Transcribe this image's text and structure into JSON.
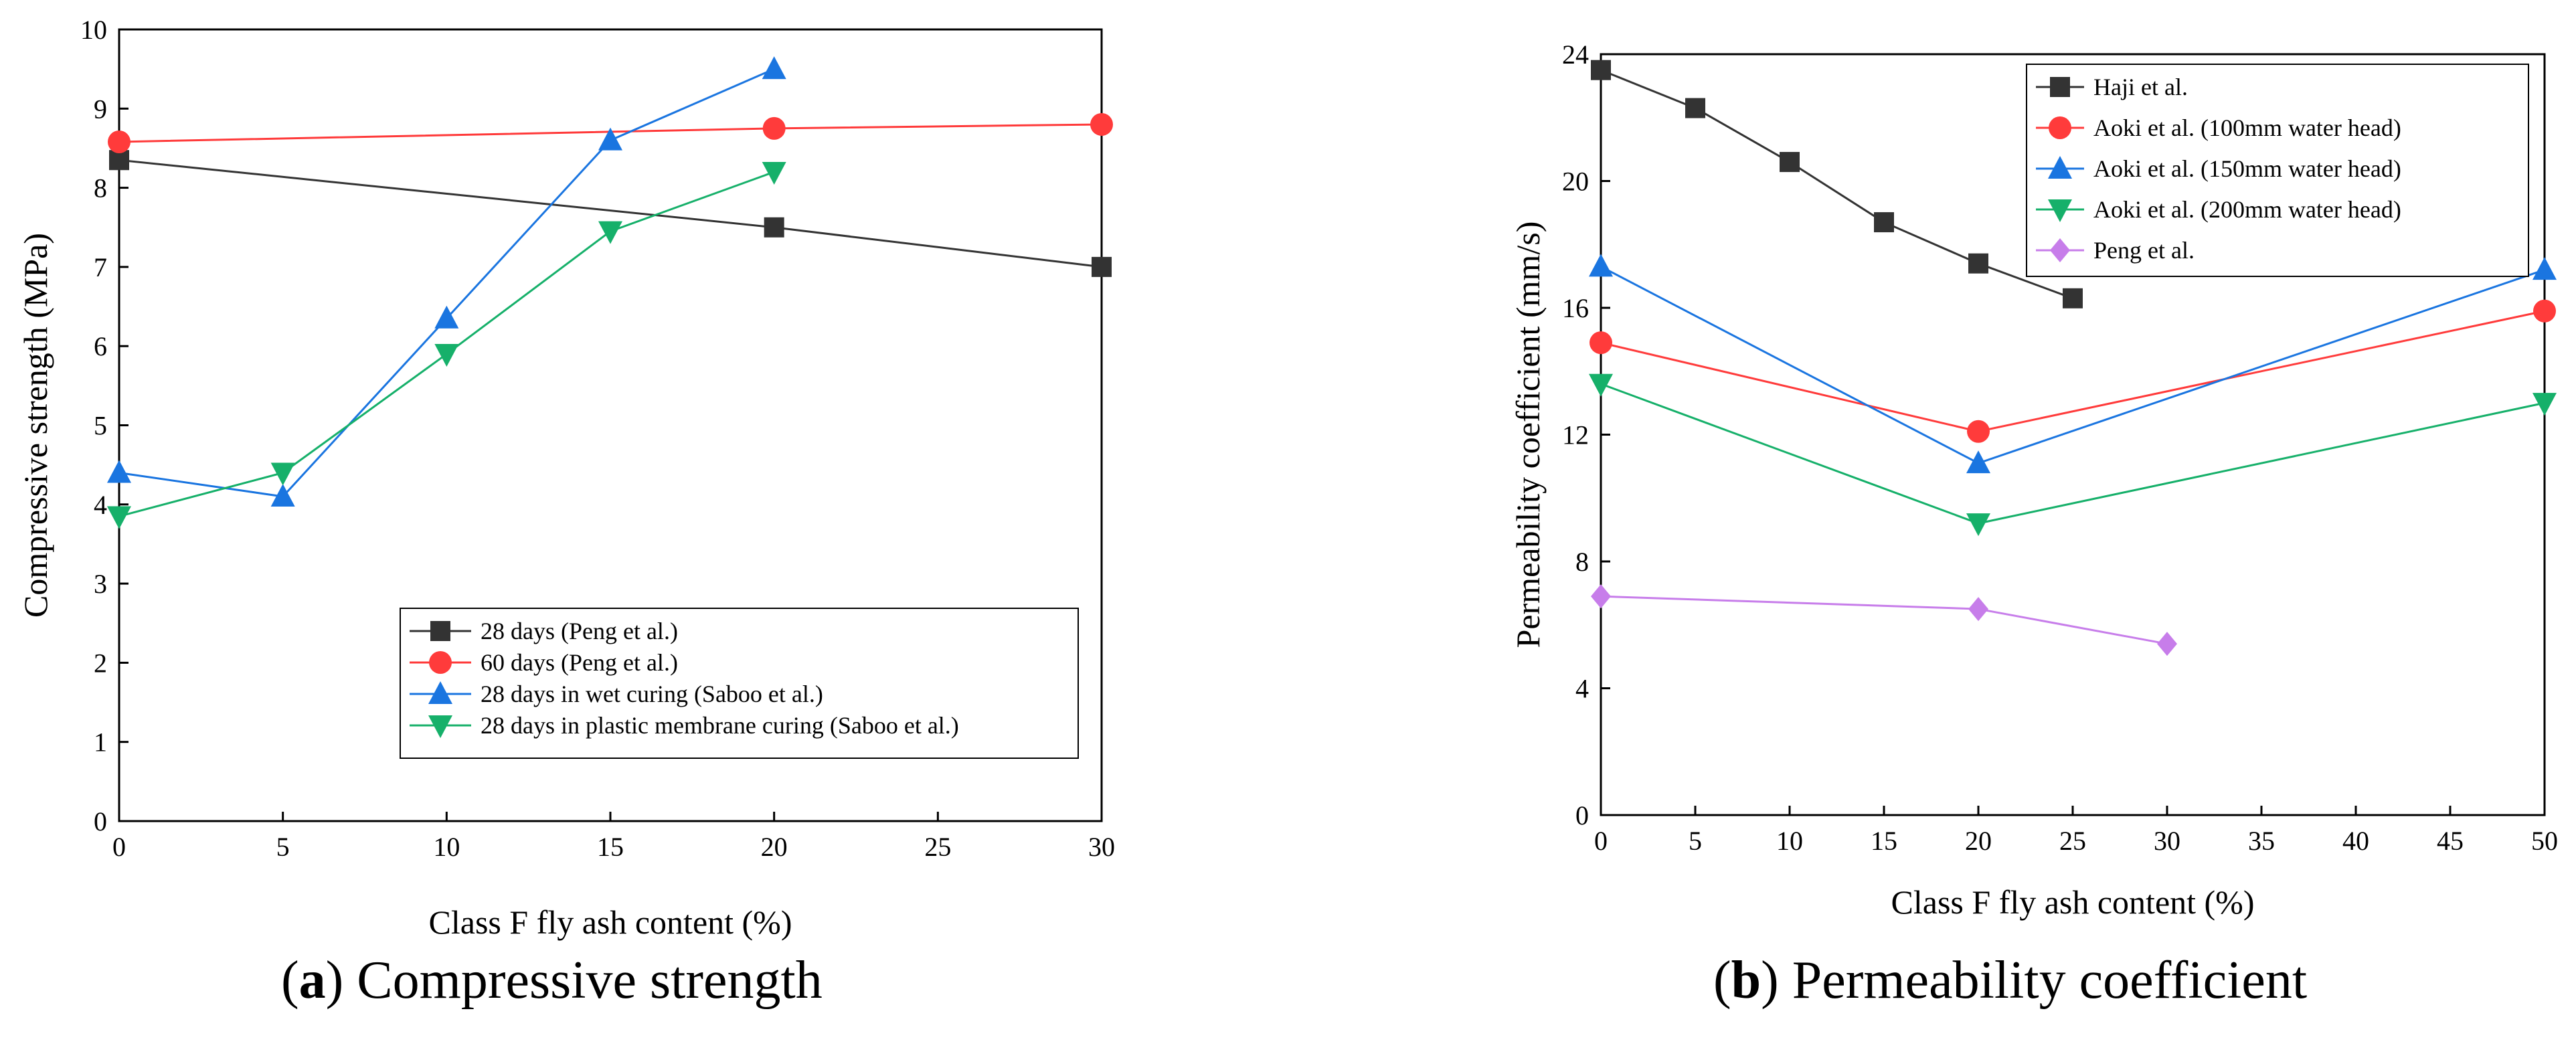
{
  "chart_data": [
    {
      "type": "line",
      "xlabel": "Class F fly ash content (%)",
      "ylabel": "Compressive strength (MPa)",
      "xlim": [
        0,
        30
      ],
      "ylim": [
        0,
        10
      ],
      "xticks": [
        0,
        5,
        10,
        15,
        20,
        25,
        30
      ],
      "yticks": [
        0,
        1,
        2,
        3,
        4,
        5,
        6,
        7,
        8,
        9,
        10
      ],
      "legend_position": "bottom-right",
      "series": [
        {
          "name": "28 days (Peng et al.)",
          "color": "#333333",
          "marker": "square",
          "x": [
            0,
            20,
            30
          ],
          "y": [
            8.35,
            7.5,
            7.0
          ]
        },
        {
          "name": "60 days (Peng et al.)",
          "color": "#ff3b3b",
          "marker": "circle",
          "x": [
            0,
            20,
            30
          ],
          "y": [
            8.58,
            8.75,
            8.8
          ]
        },
        {
          "name": "28 days in wet curing (Saboo et al.)",
          "color": "#1a75e0",
          "marker": "triangle-up",
          "x": [
            0,
            5,
            10,
            15,
            20
          ],
          "y": [
            4.4,
            4.1,
            6.35,
            8.6,
            9.5
          ]
        },
        {
          "name": "28 days in plastic membrane curing (Saboo et al.)",
          "color": "#16b06a",
          "marker": "triangle-down",
          "x": [
            0,
            5,
            10,
            15,
            20
          ],
          "y": [
            3.85,
            4.4,
            5.9,
            7.45,
            8.2
          ]
        }
      ]
    },
    {
      "type": "line",
      "xlabel": "Class F fly ash content (%)",
      "ylabel": "Permeability coefficient (mm/s)",
      "xlim": [
        0,
        50
      ],
      "ylim": [
        0,
        24
      ],
      "xticks": [
        0,
        5,
        10,
        15,
        20,
        25,
        30,
        35,
        40,
        45,
        50
      ],
      "yticks": [
        0,
        4,
        8,
        12,
        16,
        20,
        24
      ],
      "legend_position": "top-right",
      "series": [
        {
          "name": "Haji et al.",
          "color": "#333333",
          "marker": "square",
          "x": [
            0,
            5,
            10,
            15,
            20,
            25
          ],
          "y": [
            23.5,
            22.3,
            20.6,
            18.7,
            17.4,
            16.3
          ]
        },
        {
          "name": "Aoki et al. (100mm water head)",
          "color": "#ff3b3b",
          "marker": "circle",
          "x": [
            0,
            20,
            50
          ],
          "y": [
            14.9,
            12.1,
            15.9
          ]
        },
        {
          "name": "Aoki et al. (150mm water head)",
          "color": "#1a75e0",
          "marker": "triangle-up",
          "x": [
            0,
            20,
            50
          ],
          "y": [
            17.3,
            11.1,
            17.2
          ]
        },
        {
          "name": "Aoki et al. (200mm water head)",
          "color": "#16b06a",
          "marker": "triangle-down",
          "x": [
            0,
            20,
            50
          ],
          "y": [
            13.6,
            9.2,
            13.0
          ]
        },
        {
          "name": "Peng et al.",
          "color": "#c77dea",
          "marker": "diamond",
          "x": [
            0,
            20,
            30
          ],
          "y": [
            6.9,
            6.5,
            5.4
          ]
        }
      ]
    }
  ],
  "captions": [
    {
      "letter": "a",
      "text": " Compressive strength"
    },
    {
      "letter": "b",
      "text": " Permeability coefficient"
    }
  ]
}
